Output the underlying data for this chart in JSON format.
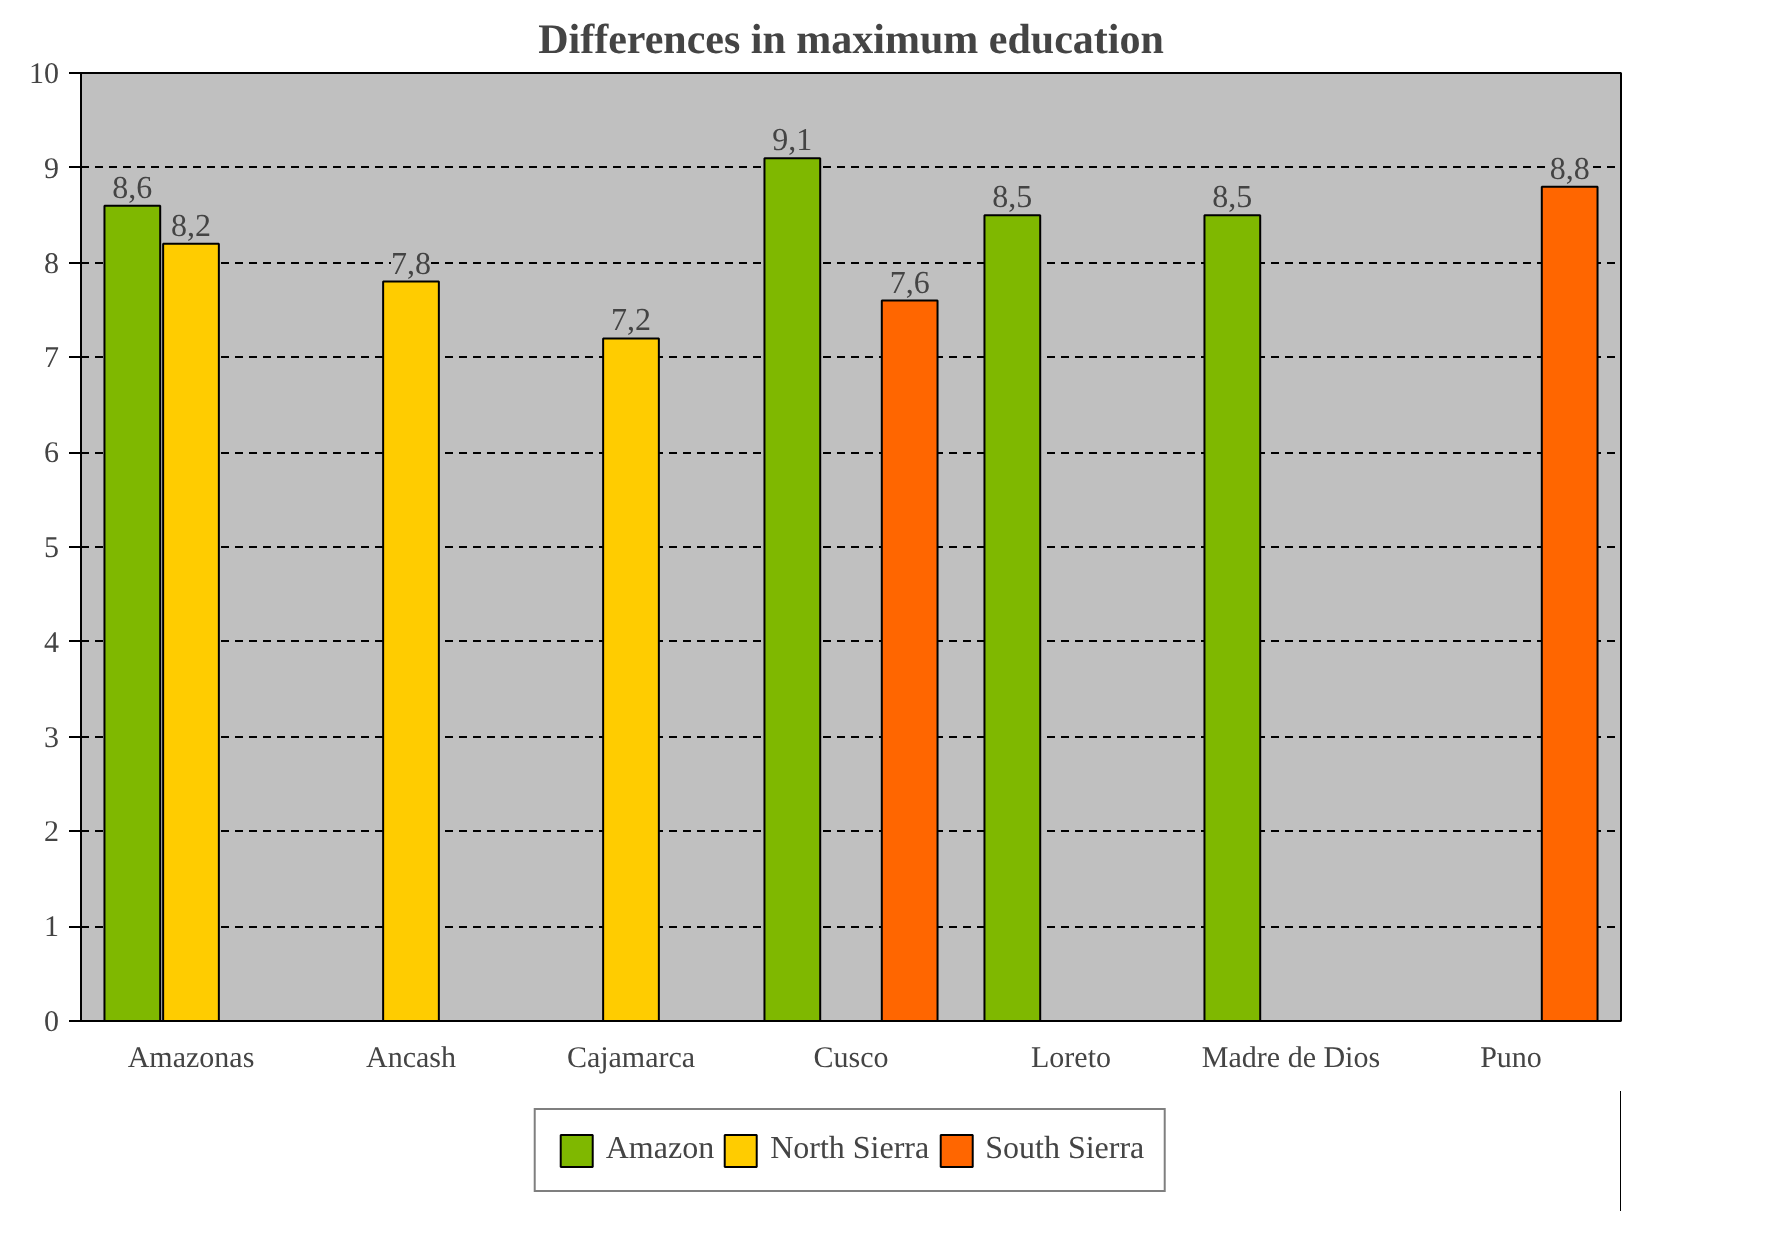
{
  "chart_data": {
    "type": "bar",
    "title": "Differences in maximum education",
    "categories": [
      "Amazonas",
      "Ancash",
      "Cajamarca",
      "Cusco",
      "Loreto",
      "Madre de Dios",
      "Puno"
    ],
    "series": [
      {
        "name": "Amazon",
        "color": "#7fb800",
        "values": [
          8.6,
          null,
          null,
          9.1,
          8.5,
          8.5,
          null
        ],
        "value_labels": [
          "8,6",
          null,
          null,
          "9,1",
          "8,5",
          "8,5",
          null
        ]
      },
      {
        "name": "North Sierra",
        "color": "#ffcc00",
        "values": [
          8.2,
          7.8,
          7.2,
          null,
          null,
          null,
          null
        ],
        "value_labels": [
          "8,2",
          "7,8",
          "7,2",
          null,
          null,
          null,
          null
        ]
      },
      {
        "name": "South Sierra",
        "color": "#ff6600",
        "values": [
          null,
          null,
          null,
          7.6,
          null,
          null,
          8.8
        ],
        "value_labels": [
          null,
          null,
          null,
          "7,6",
          null,
          null,
          "8,8"
        ]
      }
    ],
    "ylim": [
      0,
      10
    ],
    "yticks": [
      0,
      1,
      2,
      3,
      4,
      5,
      6,
      7,
      8,
      9,
      10
    ],
    "grid": "y",
    "legend": "bottom"
  }
}
